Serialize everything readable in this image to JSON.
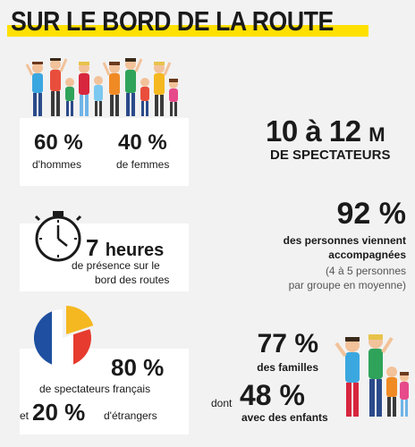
{
  "title": "SUR LE BORD DE LA ROUTE",
  "gender": {
    "men_value": "60 %",
    "men_label": "d'hommes",
    "women_value": "40 %",
    "women_label": "de femmes"
  },
  "spectators": {
    "value": "10 à 12",
    "unit": "M",
    "label": "DE SPECTATEURS"
  },
  "duration": {
    "value": "7",
    "unit": "heures",
    "line1": "de présence sur le",
    "line2": "bord des routes"
  },
  "accompanied": {
    "value": "92 %",
    "line1": "des personnes viennent",
    "line2": "accompagnées",
    "line3": "(4 à 5 personnes",
    "line4": "par groupe en moyenne)"
  },
  "nationality": {
    "french_value": "80 %",
    "french_label": "de spectateurs français",
    "and_word": "et",
    "foreign_value": "20 %",
    "foreign_label": "d'étrangers"
  },
  "families": {
    "value": "77 %",
    "label": "des familles",
    "dont_word": "dont",
    "children_value": "48 %",
    "children_label": "avec des enfants"
  },
  "colors": {
    "accent": "#ffe000",
    "flag_blue": "#1e4fa0",
    "flag_red": "#e63b2e",
    "pie_yellow": "#f5b820"
  },
  "icons": [
    "crowd-illustration",
    "stopwatch-icon",
    "flag-pie-icon",
    "family-illustration"
  ]
}
